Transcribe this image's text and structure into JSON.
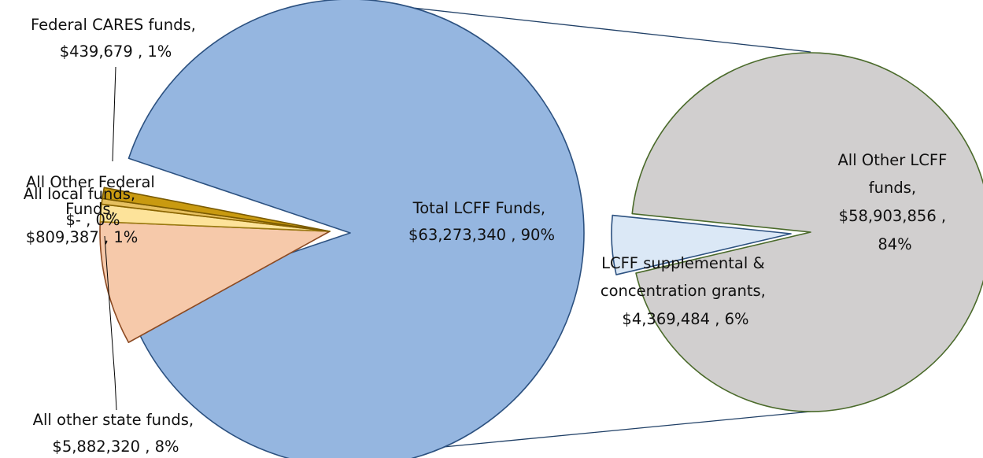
{
  "chart_data": [
    {
      "type": "pie",
      "slices": [
        {
          "name": "Total LCFF Funds",
          "value": 63273340,
          "value_text": "$63,273,340",
          "percent_text": "90%",
          "color": "#95b6e0",
          "edge": "#2c5180"
        },
        {
          "name": "All other state funds",
          "value": 5882320,
          "value_text": "$5,882,320",
          "percent_text": "8%",
          "color": "#f6c9aa",
          "edge": "#8c4a22"
        },
        {
          "name": "All local funds",
          "value": 809387,
          "value_text": "$809,387",
          "percent_text": "1%",
          "color": "#fde39a",
          "edge": "#9a7a10"
        },
        {
          "name": "All Other Federal Funds",
          "value": 0,
          "value_text": "$-",
          "percent_text": "0%",
          "color": "#e6c060",
          "edge": "#8a6400"
        },
        {
          "name": "Federal CARES funds",
          "value": 439679,
          "value_text": "$439,679",
          "percent_text": "1%",
          "color": "#c99a10",
          "edge": "#7a5a00"
        }
      ]
    },
    {
      "type": "pie",
      "slices": [
        {
          "name": "All Other LCFF funds",
          "value": 58903856,
          "value_text": "$58,903,856",
          "percent_text": "84%",
          "color": "#d1cfcf",
          "edge": "#4a6a2a"
        },
        {
          "name": "LCFF supplemental & concentration grants",
          "value": 4369484,
          "value_text": "$4,369,484",
          "percent_text": "6%",
          "color": "#dbe8f6",
          "edge": "#2c5180"
        }
      ]
    }
  ],
  "labels": {
    "total_lcff": [
      "Total LCFF Funds,",
      "$63,273,340 , 90%"
    ],
    "state": [
      "All other state funds,",
      "$5,882,320 , 8%"
    ],
    "local": [
      "All local funds,",
      "$809,387 , 1%"
    ],
    "other_federal": [
      "All Other Federal",
      "Funds,",
      "$-   , 0%"
    ],
    "cares": [
      "Federal CARES funds,",
      "$439,679 , 1%"
    ],
    "other_lcff": [
      "All Other LCFF",
      "funds,",
      "$58,903,856 ,",
      "84%"
    ],
    "supplemental": [
      "LCFF supplemental &",
      "concentration grants,",
      "$4,369,484 , 6%"
    ]
  }
}
